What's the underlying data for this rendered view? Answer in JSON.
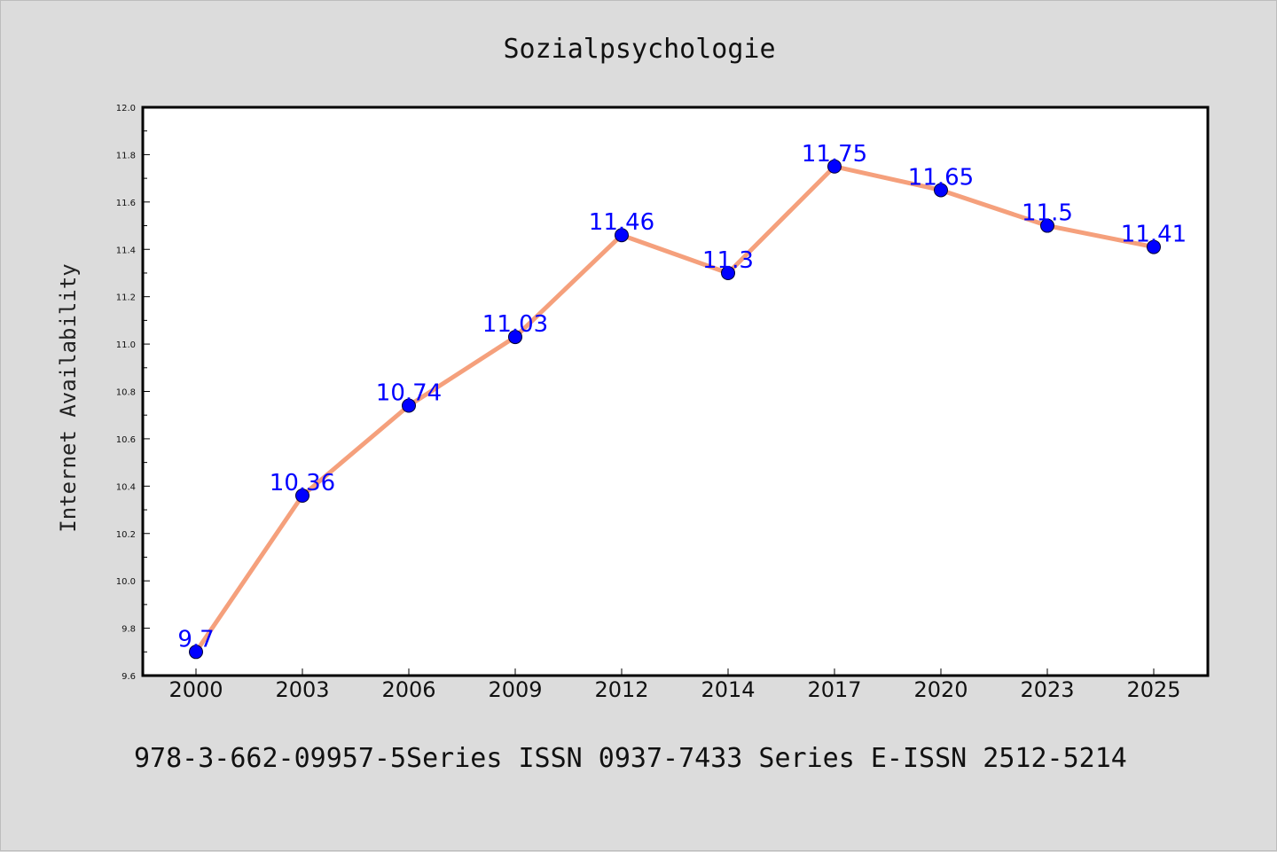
{
  "footer": {
    "text": "978-3-662-09957-5Series ISSN 0937-7433 Series E-ISSN 2512-5214"
  },
  "chart_data": {
    "type": "line",
    "title": "Sozialpsychologie",
    "xlabel": "",
    "ylabel": "Internet Availability",
    "categories": [
      "2000",
      "2003",
      "2006",
      "2009",
      "2012",
      "2014",
      "2017",
      "2020",
      "2023",
      "2025"
    ],
    "series": [
      {
        "values": [
          9.7,
          10.36,
          10.74,
          11.03,
          11.46,
          11.3,
          11.75,
          11.65,
          11.5,
          11.41
        ],
        "line_color": "#f5a07c",
        "marker_color": "#0000ff"
      }
    ],
    "data_labels": [
      "9.7",
      "10.36",
      "10.74",
      "11.03",
      "11.46",
      "11.3",
      "11.75",
      "11.65",
      "11.5",
      "11.41"
    ],
    "ylim": [
      9.6,
      12.0
    ],
    "yticks": [
      "9.6",
      "9.8",
      "10.0",
      "10.2",
      "10.4",
      "10.6",
      "10.8",
      "11.0",
      "11.2",
      "11.4",
      "11.6",
      "11.8",
      "12.0"
    ],
    "grid": false,
    "legend": "none"
  }
}
